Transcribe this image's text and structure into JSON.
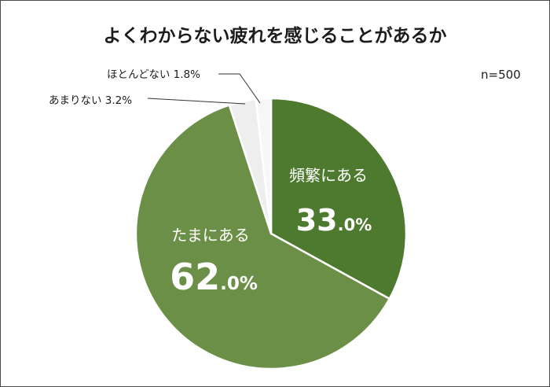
{
  "chart_data": {
    "type": "pie",
    "title": "よくわからない疲れを感じることがあるか",
    "note": "n=500",
    "start": "top",
    "direction": "clockwise",
    "slices": [
      {
        "label": "頻繁にある",
        "value": 33.0,
        "value_text": "33.0%",
        "color": "#4d7a2e",
        "label_style": "inside"
      },
      {
        "label": "たまにある",
        "value": 62.0,
        "value_text": "62.0%",
        "color": "#6b8f47",
        "label_style": "inside"
      },
      {
        "label": "あまりない",
        "value": 3.2,
        "value_text": "3.2%",
        "color": "#eeeeee",
        "label_style": "callout"
      },
      {
        "label": "ほとんどない",
        "value": 1.8,
        "value_text": "1.8%",
        "color": "#f7f7f7",
        "label_style": "callout"
      }
    ]
  }
}
